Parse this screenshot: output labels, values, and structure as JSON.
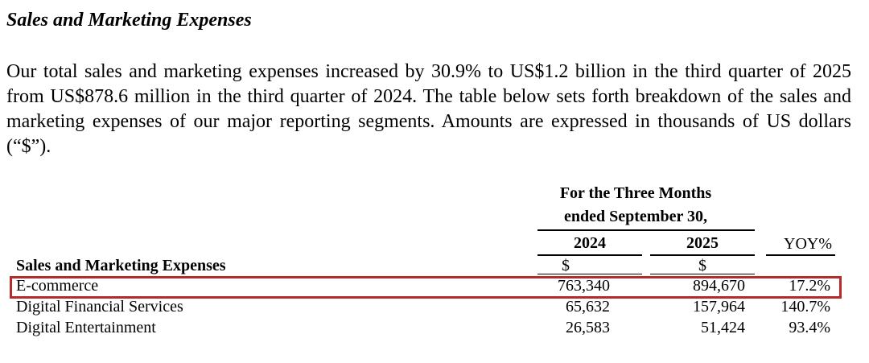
{
  "heading": "Sales and Marketing Expenses",
  "paragraph": "Our total sales and marketing expenses increased by 30.9% to US$1.2 billion in the third quarter of 2025 from US$878.6 million in the third quarter of 2024. The table below sets forth breakdown of the sales and marketing expenses of our major reporting segments. Amounts are expressed in thousands of US dollars (“$”).",
  "table": {
    "period_line1": "For the Three Months",
    "period_line2": "ended September 30,",
    "col_2024": "2024",
    "col_2025": "2025",
    "col_yoy": "YOY%",
    "section_label": "Sales and Marketing Expenses",
    "currency_2024": "$",
    "currency_2025": "$",
    "rows": [
      {
        "label": "E-commerce",
        "v2024": "763,340",
        "v2025": "894,670",
        "yoy": "17.2%"
      },
      {
        "label": "Digital Financial Services",
        "v2024": "65,632",
        "v2025": "157,964",
        "yoy": "140.7%"
      },
      {
        "label": "Digital Entertainment",
        "v2024": "26,583",
        "v2025": "51,424",
        "yoy": "93.4%"
      }
    ]
  },
  "colors": {
    "highlight_border": "#b52b2b",
    "text": "#000000",
    "background": "#ffffff"
  }
}
